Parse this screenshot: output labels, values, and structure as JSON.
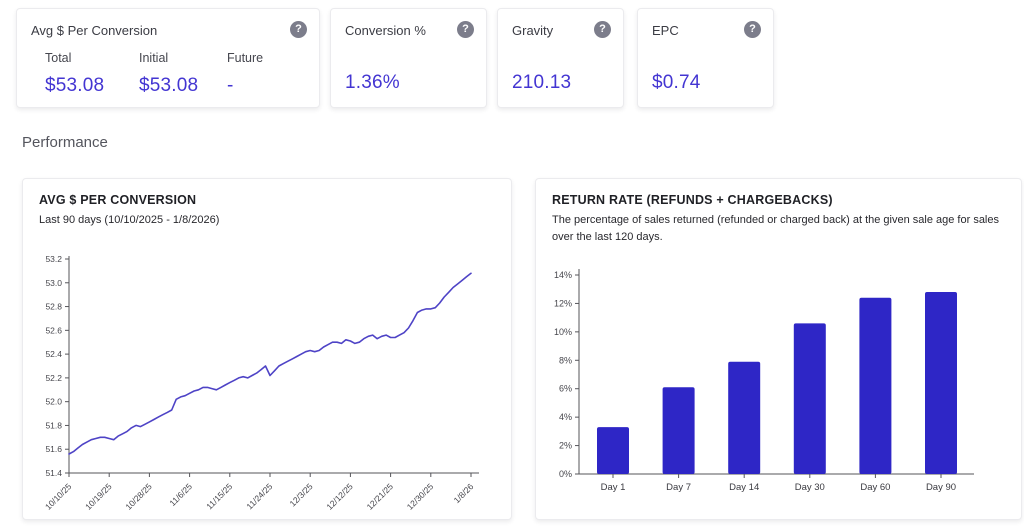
{
  "icons": {
    "help": "?"
  },
  "colors": {
    "accent_value": "#4335d2",
    "line": "#4e43c6",
    "bar": "#2e26c6",
    "axis": "#55555a",
    "tick_text": "#46464c",
    "help_icon_bg": "#7c7d8b"
  },
  "stat_cards": [
    {
      "title": "Avg $ Per Conversion",
      "columns": [
        {
          "label": "Total",
          "value": "$53.08"
        },
        {
          "label": "Initial",
          "value": "$53.08"
        },
        {
          "label": "Future",
          "value": "-"
        }
      ]
    },
    {
      "title": "Conversion %",
      "value": "1.36%"
    },
    {
      "title": "Gravity",
      "value": "210.13"
    },
    {
      "title": "EPC",
      "value": "$0.74"
    }
  ],
  "section": {
    "title": "Performance"
  },
  "chart_data": [
    {
      "type": "line",
      "title": "AVG $ PER CONVERSION",
      "subtitle": "Last 90 days (10/10/2025 - 1/8/2026)",
      "xlabel": "",
      "ylabel": "",
      "ylim": [
        51.4,
        53.2
      ],
      "y_ticks": [
        51.4,
        51.6,
        51.8,
        52.0,
        52.2,
        52.4,
        52.6,
        52.8,
        53.0,
        53.2
      ],
      "x_tick_labels": [
        "10/10/25",
        "10/19/25",
        "10/28/25",
        "11/6/25",
        "11/15/25",
        "11/24/25",
        "12/3/25",
        "12/12/25",
        "12/21/25",
        "12/30/25",
        "1/8/26"
      ],
      "grid": false,
      "legend": false,
      "values": [
        51.56,
        51.58,
        51.61,
        51.64,
        51.66,
        51.68,
        51.69,
        51.7,
        51.7,
        51.69,
        51.68,
        51.71,
        51.73,
        51.75,
        51.78,
        51.8,
        51.79,
        51.81,
        51.83,
        51.85,
        51.87,
        51.89,
        51.91,
        51.93,
        52.02,
        52.04,
        52.05,
        52.07,
        52.09,
        52.1,
        52.12,
        52.12,
        52.11,
        52.1,
        52.12,
        52.14,
        52.16,
        52.18,
        52.2,
        52.21,
        52.2,
        52.22,
        52.24,
        52.27,
        52.3,
        52.22,
        52.26,
        52.3,
        52.32,
        52.34,
        52.36,
        52.38,
        52.4,
        52.42,
        52.43,
        52.42,
        52.43,
        52.46,
        52.48,
        52.5,
        52.5,
        52.49,
        52.52,
        52.51,
        52.49,
        52.5,
        52.53,
        52.55,
        52.56,
        52.53,
        52.55,
        52.56,
        52.54,
        52.54,
        52.56,
        52.58,
        52.62,
        52.68,
        52.75,
        52.77,
        52.78,
        52.78,
        52.79,
        52.83,
        52.88,
        52.92,
        52.96,
        52.99,
        53.02,
        53.05,
        53.08
      ]
    },
    {
      "type": "bar",
      "title": "RETURN RATE (REFUNDS + CHARGEBACKS)",
      "subtitle": "The percentage of sales returned (refunded or charged back) at the given sale age for sales over the last 120 days.",
      "categories": [
        "Day 1",
        "Day 7",
        "Day 14",
        "Day 30",
        "Day 60",
        "Day 90"
      ],
      "values": [
        3.3,
        6.1,
        7.9,
        10.6,
        12.4,
        12.8
      ],
      "ylim": [
        0,
        14
      ],
      "y_tick_labels": [
        "0%",
        "2%",
        "4%",
        "6%",
        "8%",
        "10%",
        "12%",
        "14%"
      ],
      "grid": false,
      "legend": false
    }
  ]
}
